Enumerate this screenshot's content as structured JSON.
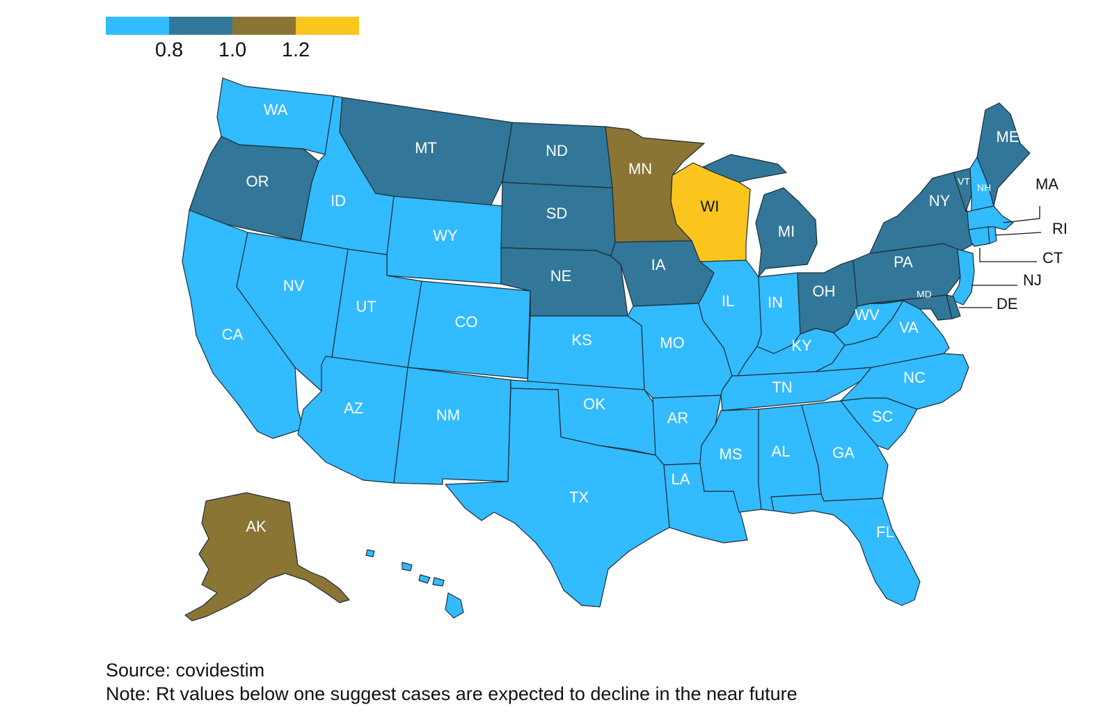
{
  "legend": {
    "colors": [
      "#33bbff",
      "#327799",
      "#8a7535",
      "#fcc51d"
    ],
    "ticks": [
      "0.8",
      "1.0",
      "1.2"
    ]
  },
  "category_colors": {
    "below_0.8": "#33bbff",
    "0.8_to_1.0": "#327799",
    "1.0_to_1.2": "#8a7535",
    "above_1.2": "#fcc51d"
  },
  "states": {
    "WA": "below_0.8",
    "OR": "0.8_to_1.0",
    "CA": "below_0.8",
    "ID": "below_0.8",
    "NV": "below_0.8",
    "MT": "0.8_to_1.0",
    "WY": "below_0.8",
    "UT": "below_0.8",
    "AZ": "below_0.8",
    "CO": "below_0.8",
    "NM": "below_0.8",
    "ND": "0.8_to_1.0",
    "SD": "0.8_to_1.0",
    "NE": "0.8_to_1.0",
    "KS": "below_0.8",
    "OK": "below_0.8",
    "TX": "below_0.8",
    "MN": "1.0_to_1.2",
    "IA": "0.8_to_1.0",
    "MO": "below_0.8",
    "AR": "below_0.8",
    "LA": "below_0.8",
    "WI": "above_1.2",
    "IL": "below_0.8",
    "MI": "0.8_to_1.0",
    "IN": "below_0.8",
    "OH": "0.8_to_1.0",
    "KY": "below_0.8",
    "TN": "below_0.8",
    "MS": "below_0.8",
    "AL": "below_0.8",
    "GA": "below_0.8",
    "FL": "below_0.8",
    "SC": "below_0.8",
    "NC": "below_0.8",
    "VA": "below_0.8",
    "WV": "below_0.8",
    "PA": "0.8_to_1.0",
    "NY": "0.8_to_1.0",
    "VT": "0.8_to_1.0",
    "NH": "below_0.8",
    "ME": "0.8_to_1.0",
    "MA": "below_0.8",
    "RI": "below_0.8",
    "CT": "below_0.8",
    "NJ": "below_0.8",
    "DE": "0.8_to_1.0",
    "MD": "0.8_to_1.0",
    "AK": "1.0_to_1.2",
    "HI": "below_0.8"
  },
  "footer": {
    "source": "Source: covidestim",
    "note": "Note: Rt values below one suggest cases are expected to decline in the near future"
  }
}
